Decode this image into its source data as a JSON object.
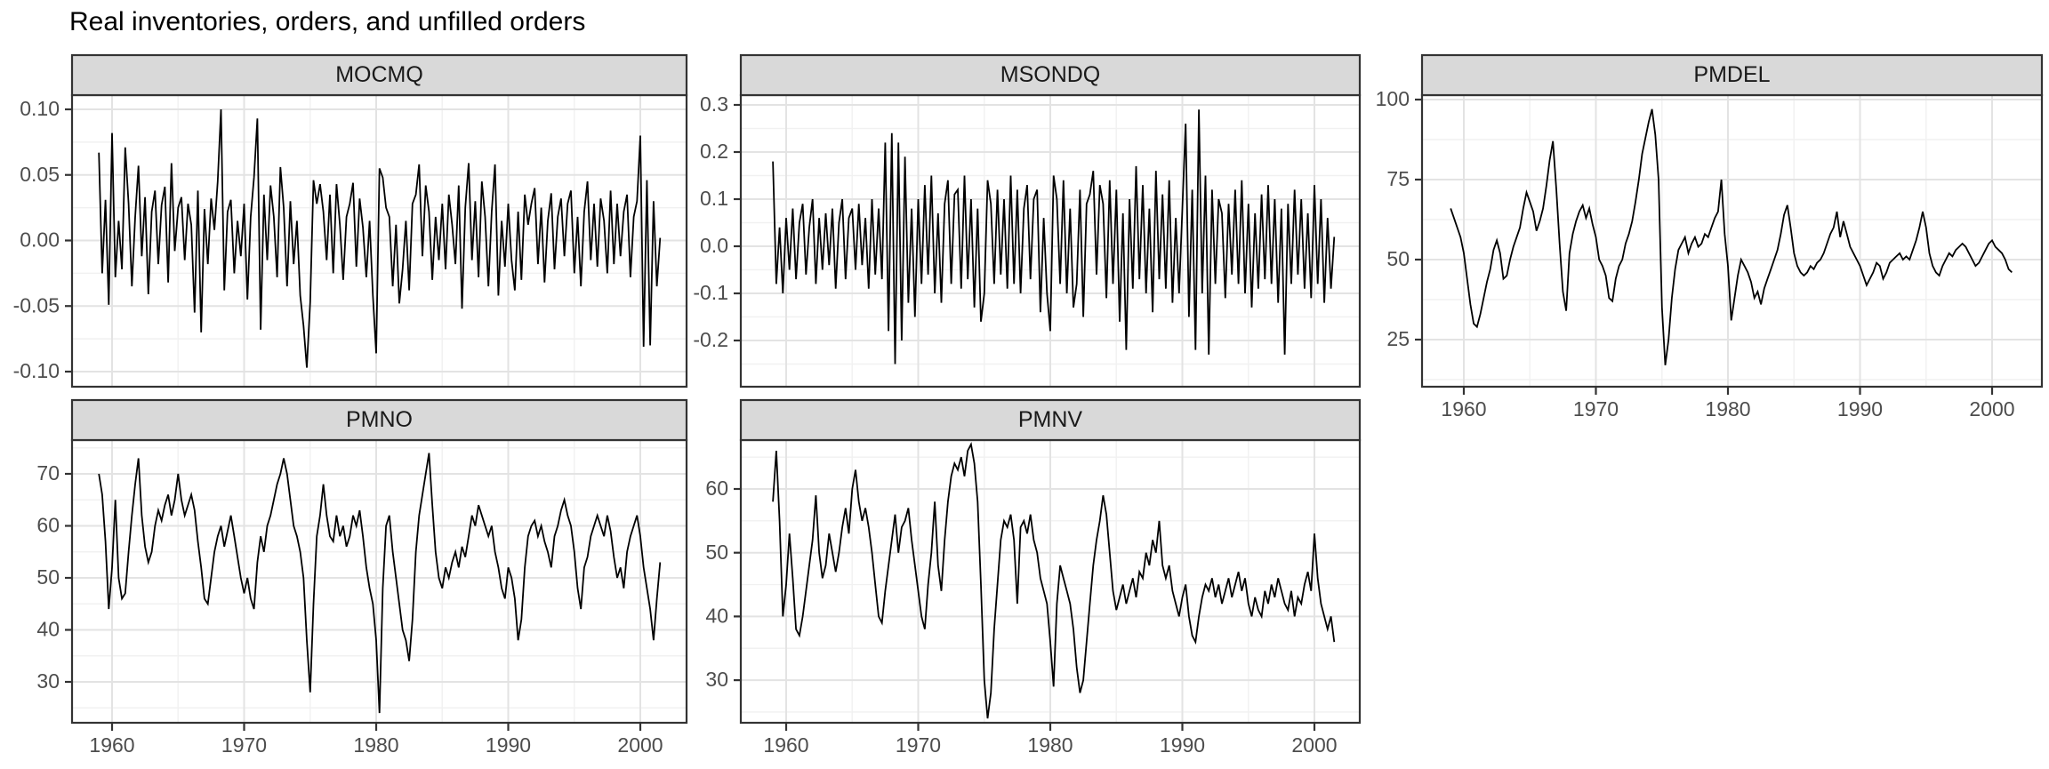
{
  "title": "Real inventories, orders, and unfilled orders",
  "style": {
    "background": "#FFFFFF",
    "strip_fill": "#D9D9D9",
    "strip_text_color": "#1A1A1A",
    "panel_border_color": "#333333",
    "grid_major_color": "#E3E3E3",
    "grid_minor_color": "#F1F1F1",
    "axis_text_color": "#4D4D4D",
    "tick_mark_color": "#333333",
    "series_color": "#000000"
  },
  "chart_data": {
    "type": "line",
    "title": "Real inventories, orders, and unfilled orders",
    "x_unit": "year",
    "x_start": 1959.0,
    "x_step": 0.25,
    "xlim": [
      1957.0,
      2003.5
    ],
    "x_ticks": [
      1960,
      1970,
      1980,
      1990,
      2000
    ],
    "x_tick_labels": [
      "1960",
      "1970",
      "1980",
      "1990",
      "2000"
    ],
    "x_minor": [
      1965,
      1975,
      1985,
      1995
    ],
    "grid": true,
    "legend": "none",
    "facets": [
      {
        "label": "MOCMQ",
        "row": 0,
        "col": 0,
        "show_x_axis": false,
        "ylim": [
          -0.1115,
          0.1108
        ],
        "y_ticks": [
          0.1,
          0.05,
          0.0,
          -0.05,
          -0.1
        ],
        "y_tick_labels": [
          "0.10",
          "0.05",
          "0.00",
          "-0.05",
          "-0.10"
        ],
        "y_minor": [
          0.075,
          0.025,
          -0.025,
          -0.075
        ],
        "values": [
          0.067,
          -0.025,
          0.031,
          -0.049,
          0.082,
          -0.028,
          0.015,
          -0.022,
          0.071,
          0.028,
          -0.035,
          0.018,
          0.057,
          -0.012,
          0.033,
          -0.041,
          0.022,
          0.038,
          -0.018,
          0.027,
          0.041,
          -0.032,
          0.059,
          -0.008,
          0.025,
          0.033,
          -0.015,
          0.028,
          0.012,
          -0.055,
          0.038,
          -0.07,
          0.024,
          -0.018,
          0.032,
          0.008,
          0.045,
          0.1,
          -0.038,
          0.022,
          0.031,
          -0.025,
          0.015,
          -0.012,
          0.028,
          -0.045,
          0.018,
          0.048,
          0.093,
          -0.068,
          0.035,
          -0.015,
          0.042,
          0.018,
          -0.028,
          0.056,
          0.025,
          -0.035,
          0.03,
          -0.018,
          0.015,
          -0.042,
          -0.065,
          -0.097,
          -0.047,
          0.046,
          0.028,
          0.043,
          0.022,
          -0.015,
          0.035,
          -0.025,
          0.043,
          0.012,
          -0.03,
          0.018,
          0.028,
          0.044,
          -0.02,
          0.032,
          0.01,
          -0.028,
          0.015,
          -0.042,
          -0.086,
          0.055,
          0.048,
          0.025,
          0.018,
          -0.035,
          0.012,
          -0.048,
          -0.022,
          0.015,
          -0.038,
          0.028,
          0.035,
          0.058,
          -0.012,
          0.042,
          0.022,
          -0.03,
          0.018,
          -0.015,
          0.028,
          -0.022,
          0.035,
          0.012,
          -0.018,
          0.042,
          -0.052,
          0.025,
          0.059,
          -0.015,
          0.03,
          -0.028,
          0.045,
          0.018,
          -0.035,
          0.022,
          0.058,
          -0.042,
          0.015,
          -0.02,
          0.028,
          -0.015,
          -0.038,
          0.022,
          -0.03,
          0.035,
          0.012,
          0.028,
          0.04,
          -0.018,
          0.025,
          -0.032,
          0.015,
          0.036,
          -0.022,
          0.018,
          0.032,
          -0.012,
          0.028,
          0.038,
          -0.025,
          0.018,
          -0.035,
          0.022,
          0.045,
          -0.015,
          0.028,
          -0.02,
          0.032,
          0.015,
          -0.025,
          0.038,
          -0.018,
          0.028,
          -0.012,
          0.022,
          0.035,
          -0.028,
          0.018,
          0.03,
          0.08,
          -0.081,
          0.046,
          -0.08,
          0.03,
          -0.035,
          0.002
        ]
      },
      {
        "label": "MSONDQ",
        "row": 0,
        "col": 1,
        "show_x_axis": false,
        "ylim": [
          -0.298,
          0.321
        ],
        "y_ticks": [
          0.3,
          0.2,
          0.1,
          0.0,
          -0.1,
          -0.2
        ],
        "y_tick_labels": [
          "0.3",
          "0.2",
          "0.1",
          "0.0",
          "-0.1",
          "-0.2"
        ],
        "y_minor": [
          0.25,
          0.15,
          0.05,
          -0.05,
          -0.15,
          -0.25
        ],
        "values": [
          0.18,
          -0.08,
          0.04,
          -0.1,
          0.06,
          -0.05,
          0.08,
          -0.07,
          0.05,
          0.09,
          -0.06,
          0.04,
          0.1,
          -0.08,
          0.06,
          -0.05,
          0.07,
          -0.04,
          0.08,
          -0.09,
          0.05,
          0.1,
          -0.07,
          0.06,
          0.08,
          -0.05,
          0.09,
          -0.04,
          0.06,
          -0.09,
          0.1,
          -0.06,
          0.08,
          -0.07,
          0.22,
          -0.18,
          0.24,
          -0.25,
          0.22,
          -0.2,
          0.19,
          -0.12,
          0.08,
          -0.15,
          0.1,
          -0.08,
          0.13,
          -0.06,
          0.15,
          -0.1,
          0.07,
          -0.12,
          0.09,
          0.14,
          -0.08,
          0.11,
          0.12,
          -0.09,
          0.15,
          -0.07,
          0.1,
          -0.13,
          0.08,
          -0.16,
          -0.1,
          0.14,
          0.09,
          -0.08,
          0.12,
          -0.06,
          0.1,
          -0.09,
          0.15,
          -0.08,
          0.12,
          -0.1,
          0.08,
          0.13,
          -0.07,
          0.1,
          0.12,
          -0.14,
          0.06,
          -0.1,
          -0.18,
          0.15,
          0.1,
          -0.08,
          0.14,
          -0.1,
          0.08,
          -0.13,
          -0.08,
          0.12,
          -0.15,
          0.09,
          0.11,
          0.16,
          -0.06,
          0.13,
          0.09,
          -0.11,
          0.14,
          -0.08,
          0.12,
          -0.16,
          0.07,
          -0.22,
          0.1,
          -0.09,
          0.17,
          -0.07,
          0.13,
          -0.1,
          0.08,
          -0.14,
          0.16,
          -0.07,
          0.11,
          -0.09,
          0.14,
          -0.12,
          0.06,
          -0.1,
          0.08,
          0.26,
          -0.15,
          0.12,
          -0.22,
          0.29,
          -0.1,
          0.15,
          -0.23,
          0.12,
          -0.08,
          0.1,
          0.07,
          -0.11,
          0.09,
          -0.06,
          0.12,
          -0.08,
          0.14,
          -0.1,
          0.09,
          -0.13,
          0.07,
          -0.09,
          0.11,
          -0.07,
          0.13,
          -0.08,
          0.1,
          -0.12,
          0.08,
          -0.23,
          0.09,
          -0.08,
          0.12,
          -0.06,
          0.1,
          -0.09,
          0.07,
          -0.11,
          0.13,
          -0.08,
          0.1,
          -0.12,
          0.06,
          -0.09,
          0.02
        ]
      },
      {
        "label": "PMDEL",
        "row": 0,
        "col": 2,
        "show_x_axis": true,
        "ylim": [
          10.3,
          101.4
        ],
        "y_ticks": [
          100,
          75,
          50,
          25
        ],
        "y_tick_labels": [
          "100",
          "75",
          "50",
          "25"
        ],
        "y_minor": [
          87.5,
          62.5,
          37.5,
          12.5
        ],
        "values": [
          66,
          63,
          60,
          57,
          52,
          44,
          36,
          30,
          29,
          33,
          38,
          43,
          47,
          53,
          56,
          52,
          44,
          45,
          50,
          54,
          57,
          60,
          66,
          71,
          68,
          65,
          59,
          62,
          66,
          73,
          81,
          87,
          72,
          55,
          40,
          34,
          52,
          58,
          62,
          65,
          67,
          63,
          66,
          61,
          57,
          50,
          48,
          45,
          38,
          37,
          44,
          48,
          50,
          55,
          58,
          62,
          68,
          75,
          83,
          88,
          93,
          97,
          89,
          75,
          35,
          17,
          25,
          38,
          47,
          53,
          55,
          57,
          52,
          55,
          57,
          54,
          55,
          58,
          57,
          60,
          63,
          65,
          75,
          58,
          48,
          31,
          38,
          45,
          50,
          48,
          46,
          43,
          38,
          40,
          36,
          41,
          44,
          47,
          50,
          53,
          58,
          64,
          67,
          60,
          52,
          48,
          46,
          45,
          46,
          48,
          47,
          49,
          50,
          52,
          55,
          58,
          60,
          65,
          57,
          62,
          58,
          54,
          52,
          50,
          48,
          45,
          42,
          44,
          46,
          49,
          48,
          44,
          46,
          49,
          50,
          51,
          52,
          50,
          51,
          50,
          53,
          56,
          60,
          65,
          60,
          52,
          48,
          46,
          45,
          48,
          50,
          52,
          51,
          53,
          54,
          55,
          54,
          52,
          50,
          48,
          49,
          51,
          53,
          55,
          56,
          54,
          53,
          52,
          50,
          47,
          46
        ]
      },
      {
        "label": "PMNO",
        "row": 1,
        "col": 0,
        "show_x_axis": true,
        "ylim": [
          22.1,
          76.5
        ],
        "y_ticks": [
          70,
          60,
          50,
          40,
          30
        ],
        "y_tick_labels": [
          "70",
          "60",
          "50",
          "40",
          "30"
        ],
        "y_minor": [
          75,
          65,
          55,
          45,
          35,
          25
        ],
        "values": [
          70,
          66,
          57,
          44,
          52,
          65,
          50,
          46,
          47,
          55,
          62,
          68,
          73,
          62,
          56,
          53,
          55,
          60,
          63,
          61,
          64,
          66,
          62,
          65,
          70,
          65,
          62,
          64,
          66,
          63,
          57,
          52,
          46,
          45,
          50,
          55,
          58,
          60,
          56,
          59,
          62,
          58,
          54,
          50,
          47,
          50,
          46,
          44,
          53,
          58,
          55,
          60,
          62,
          65,
          68,
          70,
          73,
          70,
          65,
          60,
          58,
          55,
          50,
          38,
          28,
          45,
          58,
          62,
          68,
          62,
          58,
          57,
          62,
          58,
          60,
          56,
          58,
          62,
          60,
          63,
          58,
          52,
          48,
          45,
          38,
          24,
          48,
          60,
          62,
          55,
          50,
          45,
          40,
          38,
          34,
          42,
          55,
          62,
          66,
          70,
          74,
          64,
          55,
          50,
          48,
          52,
          50,
          53,
          55,
          52,
          56,
          54,
          58,
          62,
          60,
          64,
          62,
          60,
          58,
          60,
          55,
          52,
          48,
          46,
          52,
          50,
          46,
          38,
          42,
          52,
          58,
          60,
          61,
          58,
          60,
          57,
          55,
          52,
          58,
          60,
          63,
          65,
          62,
          60,
          55,
          48,
          44,
          52,
          54,
          58,
          60,
          62,
          60,
          58,
          62,
          59,
          54,
          50,
          52,
          48,
          55,
          58,
          60,
          62,
          58,
          52,
          48,
          44,
          38,
          46,
          53
        ]
      },
      {
        "label": "PMNV",
        "row": 1,
        "col": 1,
        "show_x_axis": true,
        "ylim": [
          23.3,
          67.7
        ],
        "y_ticks": [
          60,
          50,
          40,
          30
        ],
        "y_tick_labels": [
          "60",
          "50",
          "40",
          "30"
        ],
        "y_minor": [
          65,
          55,
          45,
          35,
          25
        ],
        "values": [
          58,
          66,
          55,
          40,
          45,
          53,
          46,
          38,
          37,
          40,
          44,
          48,
          52,
          59,
          50,
          46,
          48,
          53,
          50,
          47,
          50,
          54,
          57,
          53,
          60,
          63,
          58,
          55,
          57,
          54,
          50,
          45,
          40,
          39,
          44,
          48,
          52,
          56,
          50,
          54,
          55,
          57,
          52,
          48,
          44,
          40,
          38,
          45,
          50,
          58,
          48,
          44,
          52,
          58,
          62,
          64,
          63,
          65,
          62,
          66,
          67,
          64,
          58,
          45,
          30,
          24,
          28,
          38,
          45,
          52,
          55,
          54,
          56,
          52,
          42,
          54,
          55,
          53,
          56,
          52,
          50,
          46,
          44,
          42,
          36,
          29,
          42,
          48,
          46,
          44,
          42,
          38,
          32,
          28,
          30,
          36,
          42,
          48,
          52,
          55,
          59,
          56,
          50,
          44,
          41,
          43,
          45,
          42,
          44,
          46,
          43,
          47,
          46,
          50,
          48,
          52,
          50,
          55,
          48,
          46,
          48,
          44,
          42,
          40,
          43,
          45,
          40,
          37,
          36,
          40,
          43,
          45,
          44,
          46,
          43,
          45,
          42,
          44,
          46,
          43,
          45,
          47,
          44,
          46,
          42,
          40,
          43,
          41,
          40,
          44,
          42,
          45,
          43,
          46,
          44,
          42,
          41,
          44,
          40,
          43,
          42,
          45,
          47,
          44,
          53,
          46,
          42,
          40,
          38,
          40,
          36
        ]
      }
    ]
  }
}
